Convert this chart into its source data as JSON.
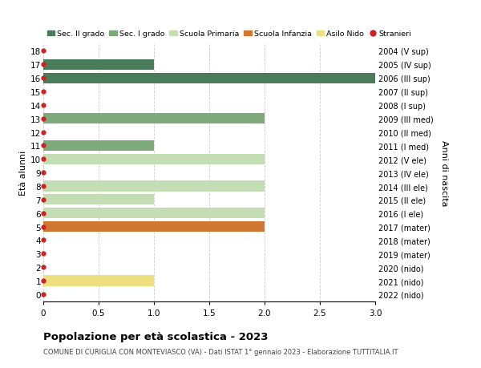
{
  "ages": [
    18,
    17,
    16,
    15,
    14,
    13,
    12,
    11,
    10,
    9,
    8,
    7,
    6,
    5,
    4,
    3,
    2,
    1,
    0
  ],
  "years": [
    "2004 (V sup)",
    "2005 (IV sup)",
    "2006 (III sup)",
    "2007 (II sup)",
    "2008 (I sup)",
    "2009 (III med)",
    "2010 (II med)",
    "2011 (I med)",
    "2012 (V ele)",
    "2013 (IV ele)",
    "2014 (III ele)",
    "2015 (II ele)",
    "2016 (I ele)",
    "2017 (mater)",
    "2018 (mater)",
    "2019 (mater)",
    "2020 (nido)",
    "2021 (nido)",
    "2022 (nido)"
  ],
  "bar_data": [
    {
      "age": 18,
      "value": 0,
      "color": "#4a7c59"
    },
    {
      "age": 17,
      "value": 1.0,
      "color": "#4a7c59"
    },
    {
      "age": 16,
      "value": 3.0,
      "color": "#4a7c59"
    },
    {
      "age": 15,
      "value": 0,
      "color": "#4a7c59"
    },
    {
      "age": 14,
      "value": 0,
      "color": "#4a7c59"
    },
    {
      "age": 13,
      "value": 2.0,
      "color": "#7daa78"
    },
    {
      "age": 12,
      "value": 0,
      "color": "#7daa78"
    },
    {
      "age": 11,
      "value": 1.0,
      "color": "#7daa78"
    },
    {
      "age": 10,
      "value": 2.0,
      "color": "#c5ddb2"
    },
    {
      "age": 9,
      "value": 0,
      "color": "#c5ddb2"
    },
    {
      "age": 8,
      "value": 2.0,
      "color": "#c5ddb2"
    },
    {
      "age": 7,
      "value": 1.0,
      "color": "#c5ddb2"
    },
    {
      "age": 6,
      "value": 2.0,
      "color": "#c5ddb2"
    },
    {
      "age": 5,
      "value": 2.0,
      "color": "#d07832"
    },
    {
      "age": 4,
      "value": 0,
      "color": "#d07832"
    },
    {
      "age": 3,
      "value": 0,
      "color": "#d07832"
    },
    {
      "age": 2,
      "value": 0,
      "color": "#f0df80"
    },
    {
      "age": 1,
      "value": 1.0,
      "color": "#f0df80"
    },
    {
      "age": 0,
      "value": 0,
      "color": "#f0df80"
    }
  ],
  "dot_color": "#cc2222",
  "legend": [
    {
      "label": "Sec. II grado",
      "color": "#4a7c59",
      "type": "patch"
    },
    {
      "label": "Sec. I grado",
      "color": "#7daa78",
      "type": "patch"
    },
    {
      "label": "Scuola Primaria",
      "color": "#c5ddb2",
      "type": "patch"
    },
    {
      "label": "Scuola Infanzia",
      "color": "#d07832",
      "type": "patch"
    },
    {
      "label": "Asilo Nido",
      "color": "#f0df80",
      "type": "patch"
    },
    {
      "label": "Stranieri",
      "color": "#cc2222",
      "type": "dot"
    }
  ],
  "ylabel_left": "Età alunni",
  "ylabel_right": "Anni di nascita",
  "xlim": [
    0,
    3.0
  ],
  "xticks": [
    0,
    0.5,
    1.0,
    1.5,
    2.0,
    2.5,
    3.0
  ],
  "xtick_labels": [
    "0",
    "0.5",
    "1.0",
    "1.5",
    "2.0",
    "2.5",
    "3.0"
  ],
  "title": "Popolazione per età scolastica - 2023",
  "subtitle": "COMUNE DI CURIGLIA CON MONTEVIASCO (VA) - Dati ISTAT 1° gennaio 2023 - Elaborazione TUTTITALIA.IT",
  "bg_color": "#ffffff",
  "grid_color": "#cccccc",
  "bar_height": 0.78,
  "ylim_bottom": -0.55,
  "ylim_top": 18.55
}
